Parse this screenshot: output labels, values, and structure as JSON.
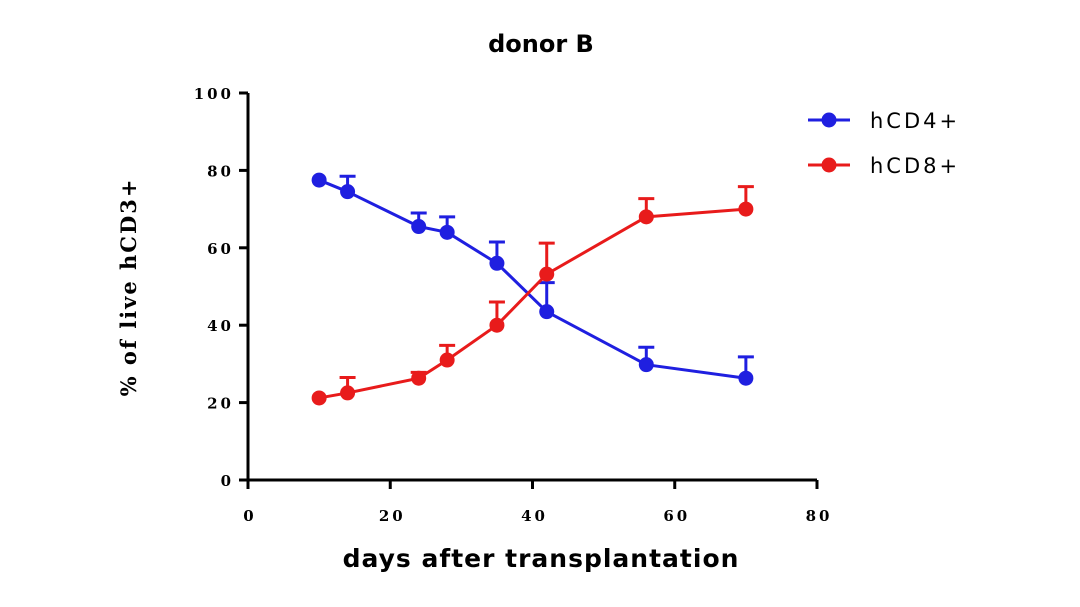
{
  "chart_data": {
    "type": "line",
    "title": "donor B",
    "xlabel": "days after transplantation",
    "ylabel": "% of live hCD3+",
    "xlim": [
      0,
      80
    ],
    "ylim": [
      0,
      100
    ],
    "x_ticks": [
      "0",
      "20",
      "40",
      "60",
      "80"
    ],
    "y_ticks": [
      "0",
      "20",
      "40",
      "60",
      "80",
      "100"
    ],
    "grid": false,
    "legend_position": "top-right",
    "error_bars": "upper",
    "series": [
      {
        "name": "hCD4+",
        "color": "#1f1fe0",
        "x": [
          10,
          14,
          24,
          28,
          35,
          42,
          56,
          70
        ],
        "y": [
          77.5,
          74.5,
          65.5,
          64,
          56,
          43.5,
          29.8,
          26.3
        ],
        "err": [
          0,
          4,
          3.5,
          4,
          5.5,
          7.5,
          4.5,
          5.5
        ]
      },
      {
        "name": "hCD8+",
        "color": "#e81b1b",
        "x": [
          10,
          14,
          24,
          28,
          35,
          42,
          56,
          70
        ],
        "y": [
          21.2,
          22.5,
          26.3,
          31,
          40,
          53.2,
          68,
          70
        ],
        "err": [
          0,
          4,
          1.5,
          3.8,
          6,
          8,
          4.7,
          5.8
        ]
      }
    ]
  }
}
